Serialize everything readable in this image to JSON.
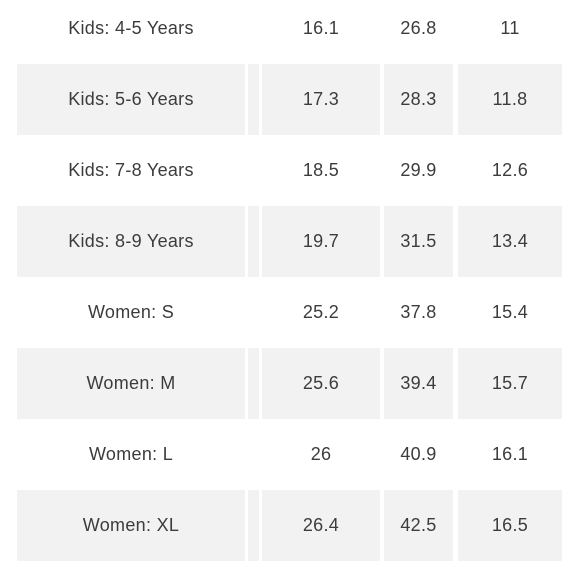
{
  "rows": [
    {
      "label": "Kids: 4-5 Years",
      "v1": "16.1",
      "v2": "26.8",
      "v3": "11",
      "shaded": false
    },
    {
      "label": "Kids: 5-6 Years",
      "v1": "17.3",
      "v2": "28.3",
      "v3": "11.8",
      "shaded": true
    },
    {
      "label": "Kids: 7-8 Years",
      "v1": "18.5",
      "v2": "29.9",
      "v3": "12.6",
      "shaded": false
    },
    {
      "label": "Kids: 8-9 Years",
      "v1": "19.7",
      "v2": "31.5",
      "v3": "13.4",
      "shaded": true
    },
    {
      "label": "Women: S",
      "v1": "25.2",
      "v2": "37.8",
      "v3": "15.4",
      "shaded": false
    },
    {
      "label": "Women: M",
      "v1": "25.6",
      "v2": "39.4",
      "v3": "15.7",
      "shaded": true
    },
    {
      "label": "Women: L",
      "v1": "26",
      "v2": "40.9",
      "v3": "16.1",
      "shaded": false
    },
    {
      "label": "Women: XL",
      "v1": "26.4",
      "v2": "42.5",
      "v3": "16.5",
      "shaded": true
    }
  ],
  "colors": {
    "text": "#3c3c3c",
    "shaded_row": "#f2f2f2",
    "background": "#ffffff"
  }
}
